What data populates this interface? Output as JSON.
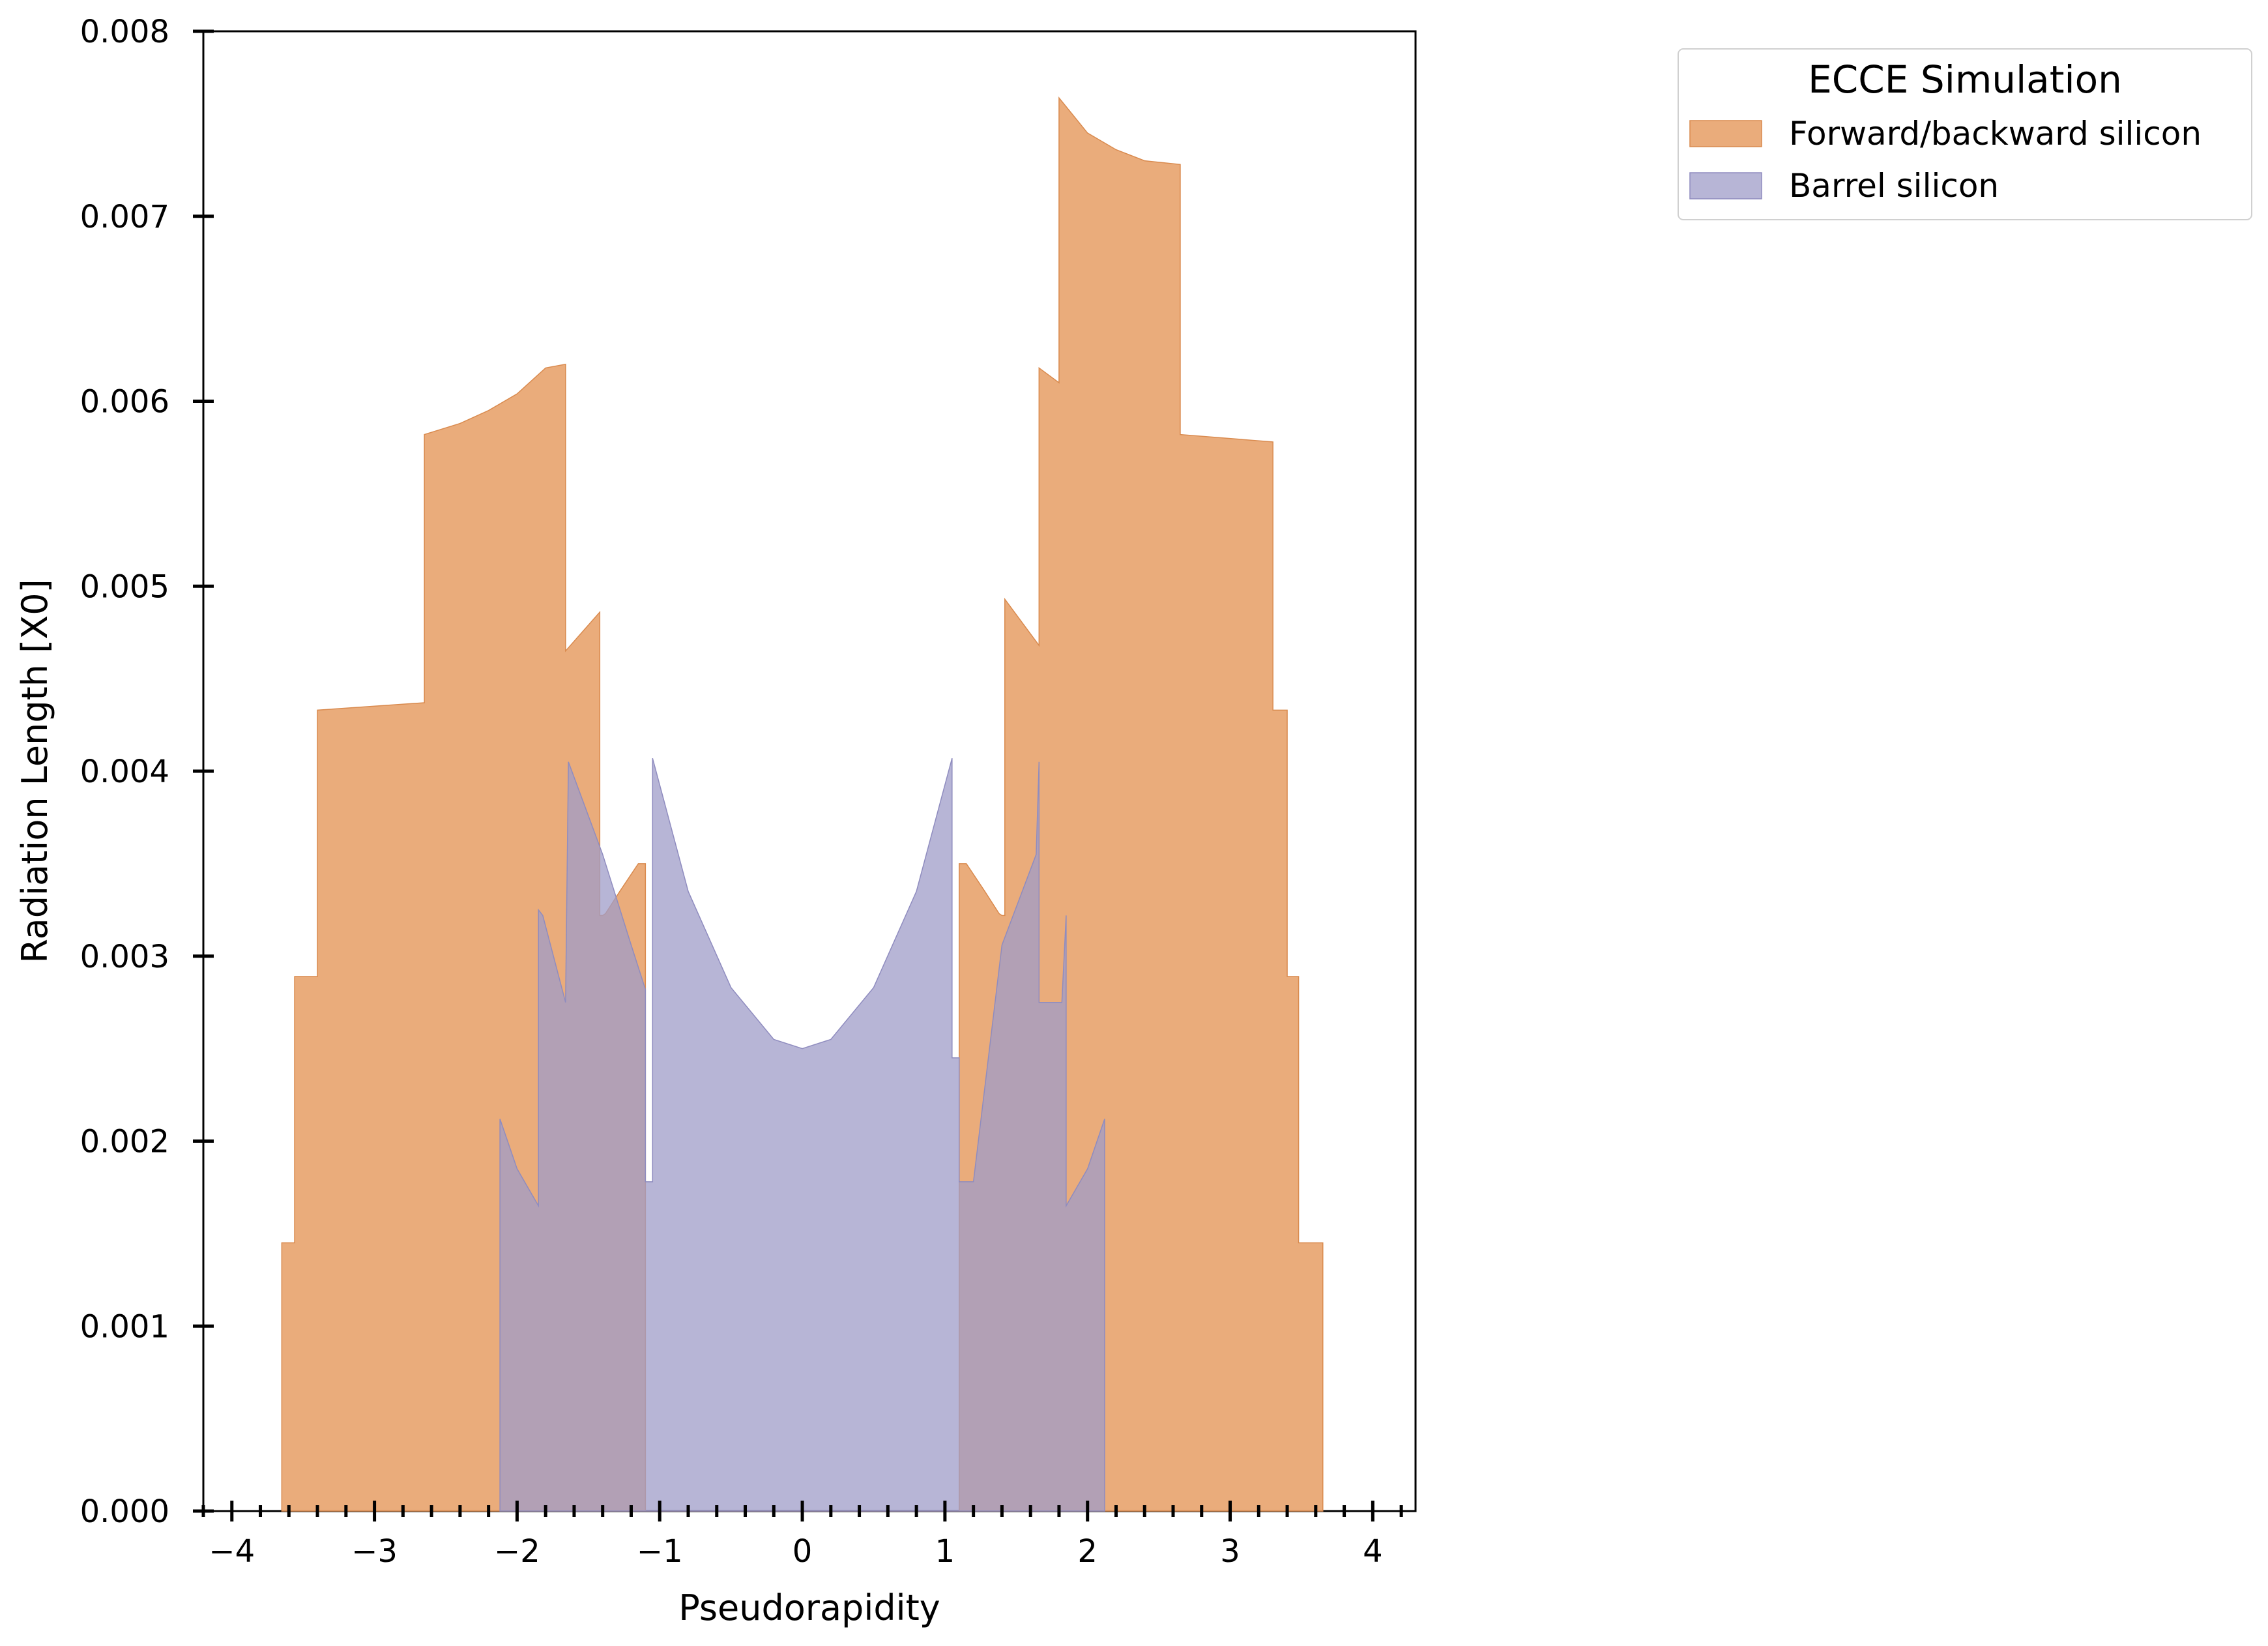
{
  "chart_data": {
    "type": "area",
    "title": "",
    "xlabel": "Pseudorapidity",
    "ylabel": "Radiation Length [X0]",
    "xlim": [
      -4.2,
      4.3
    ],
    "ylim": [
      0,
      0.008
    ],
    "x_ticks": [
      -4,
      -3,
      -2,
      -1,
      0,
      1,
      2,
      3,
      4
    ],
    "x_tick_labels": [
      "−4",
      "−3",
      "−2",
      "−1",
      "0",
      "1",
      "2",
      "3",
      "4"
    ],
    "y_ticks": [
      0,
      0.001,
      0.002,
      0.003,
      0.004,
      0.005,
      0.006,
      0.007,
      0.008
    ],
    "y_tick_labels": [
      "0.000",
      "0.001",
      "0.002",
      "0.003",
      "0.004",
      "0.005",
      "0.006",
      "0.007",
      "0.008"
    ],
    "grid": false,
    "legend": {
      "title": "ECCE Simulation",
      "placement": "outside-upper-right"
    },
    "series": [
      {
        "name": "Forward/backward silicon",
        "color": "#e9a874",
        "edge_color": "#d98a4e",
        "x": [
          -3.65,
          -3.65,
          -3.56,
          -3.56,
          -3.4,
          -3.4,
          -2.65,
          -2.65,
          -2.4,
          -2.2,
          -2.0,
          -1.8,
          -1.66,
          -1.66,
          -1.42,
          -1.42,
          -1.4,
          -1.38,
          -1.28,
          -1.15,
          -1.1,
          -1.1,
          -1.05,
          1.05,
          1.1,
          1.1,
          1.15,
          1.28,
          1.38,
          1.4,
          1.42,
          1.42,
          1.66,
          1.66,
          1.8,
          1.8,
          2.0,
          2.2,
          2.4,
          2.65,
          2.65,
          3.3,
          3.3,
          3.4,
          3.4,
          3.48,
          3.48,
          3.51,
          3.51,
          3.65,
          3.65
        ],
        "y": [
          0,
          0.00145,
          0.00145,
          0.00289,
          0.00289,
          0.00433,
          0.00437,
          0.00582,
          0.00588,
          0.00595,
          0.00604,
          0.00618,
          0.0062,
          0.00465,
          0.00486,
          0.00322,
          0.00322,
          0.00323,
          0.00335,
          0.0035,
          0.0035,
          0.0,
          0.0,
          0.0,
          0.0,
          0.0035,
          0.0035,
          0.00335,
          0.00323,
          0.00322,
          0.00322,
          0.00493,
          0.00468,
          0.00618,
          0.0061,
          0.00764,
          0.00745,
          0.00736,
          0.0073,
          0.00728,
          0.00582,
          0.00578,
          0.00433,
          0.00433,
          0.00289,
          0.00289,
          0.00145,
          0.00145,
          0.00145,
          0.00145,
          0.0
        ]
      },
      {
        "name": "Barrel silicon",
        "color": "#9f9cc8",
        "edge_color": "#8f8cbf",
        "x": [
          -2.12,
          -2.12,
          -2.0,
          -1.85,
          -1.85,
          -1.82,
          -1.66,
          -1.66,
          -1.64,
          -1.4,
          -1.2,
          -1.1,
          -1.1,
          -1.05,
          -1.05,
          -0.8,
          -0.5,
          -0.2,
          0.0,
          0.2,
          0.5,
          0.8,
          1.05,
          1.05,
          1.1,
          1.1,
          1.2,
          1.4,
          1.64,
          1.66,
          1.66,
          1.82,
          1.85,
          1.85,
          2.0,
          2.12,
          2.12
        ],
        "y": [
          0,
          0.00212,
          0.00185,
          0.00165,
          0.00325,
          0.00322,
          0.00275,
          0.00275,
          0.00405,
          0.00355,
          0.00306,
          0.00282,
          0.00178,
          0.00178,
          0.00407,
          0.00335,
          0.00283,
          0.00255,
          0.0025,
          0.00255,
          0.00283,
          0.00335,
          0.00407,
          0.00245,
          0.00245,
          0.00178,
          0.00178,
          0.00306,
          0.00355,
          0.00405,
          0.00275,
          0.00275,
          0.00322,
          0.00165,
          0.00185,
          0.00212,
          0.0
        ]
      }
    ]
  }
}
